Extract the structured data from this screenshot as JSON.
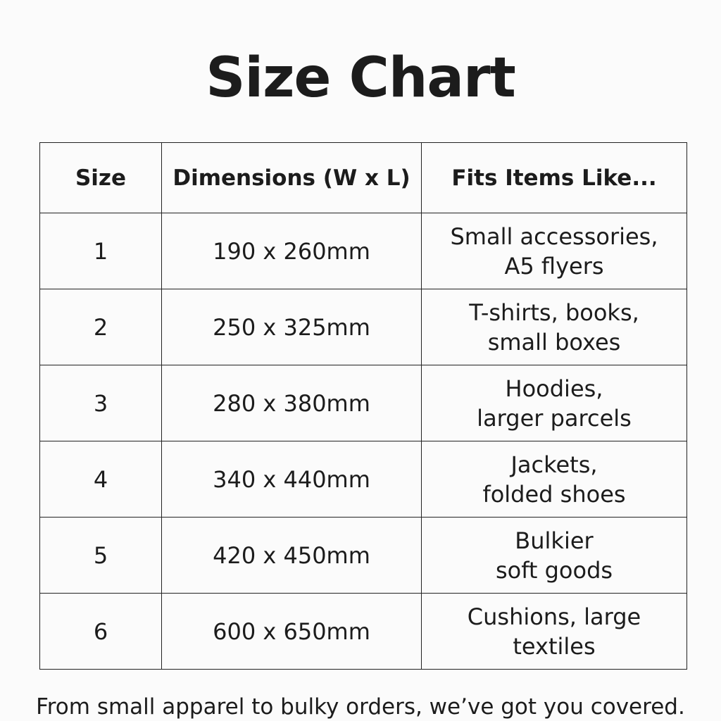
{
  "title": "Size Chart",
  "headers": [
    "Size",
    "Dimensions (W x L)",
    "Fits Items Like..."
  ],
  "rows": [
    {
      "size": "1",
      "dims": "190 x 260mm",
      "fits": [
        "Small accessories,",
        "A5 flyers"
      ]
    },
    {
      "size": "2",
      "dims": "250 x 325mm",
      "fits": [
        "T-shirts, books,",
        "small boxes"
      ]
    },
    {
      "size": "3",
      "dims": "280 x 380mm",
      "fits": [
        "Hoodies,",
        "larger parcels"
      ]
    },
    {
      "size": "4",
      "dims": "340 x 440mm",
      "fits": [
        "Jackets,",
        "folded shoes"
      ]
    },
    {
      "size": "5",
      "dims": "420 x 450mm",
      "fits": [
        "Bulkier",
        "soft goods"
      ]
    },
    {
      "size": "6",
      "dims": "600 x 650mm",
      "fits": [
        "Cushions, large",
        "textiles"
      ]
    }
  ],
  "footer": "From small apparel to bulky orders, we’ve got you covered."
}
